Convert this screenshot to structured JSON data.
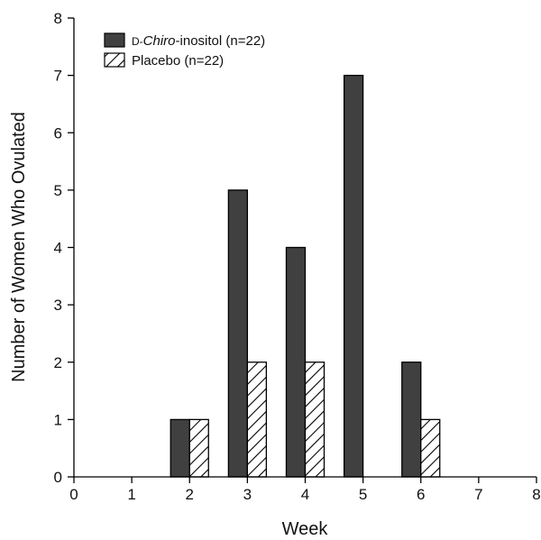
{
  "chart_data": {
    "type": "bar",
    "xlabel": "Week",
    "ylabel": "Number of Women Who Ovulated",
    "xlim": [
      0,
      8
    ],
    "ylim": [
      0,
      8
    ],
    "x_ticks": [
      "0",
      "1",
      "2",
      "3",
      "4",
      "5",
      "6",
      "7",
      "8"
    ],
    "y_ticks": [
      "0",
      "1",
      "2",
      "3",
      "4",
      "5",
      "6",
      "7",
      "8"
    ],
    "grid": false,
    "legend_position": "top-left",
    "series": [
      {
        "name": "D-Chiro-inositol (n=22)",
        "name_parts": {
          "prefix": "D-",
          "italic": "Chiro",
          "rest": "-inositol (n=22)"
        },
        "fill": "solid",
        "color": "#404040",
        "x": [
          2,
          3,
          4,
          5,
          6
        ],
        "values": [
          1,
          5,
          4,
          7,
          2
        ]
      },
      {
        "name": "Placebo (n=22)",
        "fill": "hatched",
        "color": "#ffffff",
        "x": [
          2,
          3,
          4,
          5,
          6
        ],
        "values": [
          1,
          2,
          2,
          0,
          1
        ]
      }
    ]
  }
}
